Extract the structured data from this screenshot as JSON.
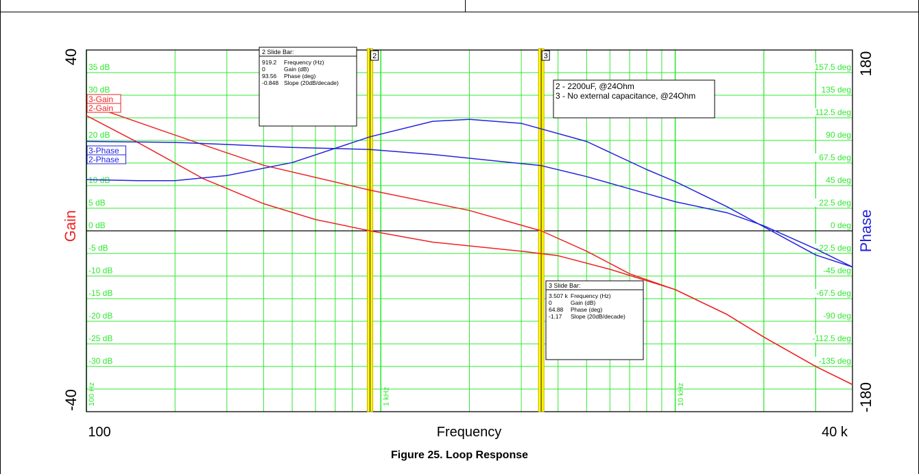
{
  "caption": "Figure 25. Loop Response",
  "colors": {
    "gain": "#ee2222",
    "phase": "#2222dd",
    "grid": "#2ee82e",
    "slidebar": "#ffff00",
    "slidebar_edge": "#c8a800"
  },
  "chart_data": {
    "type": "line",
    "xlabel": "Frequency",
    "x_scale": "log",
    "xlim": [
      100,
      40000
    ],
    "x_end_labels": [
      "100",
      "40 k"
    ],
    "x_grid_labels": [
      {
        "x": 100,
        "text": "100 Hz"
      },
      {
        "x": 1000,
        "text": "1 kHz"
      },
      {
        "x": 10000,
        "text": "10 kHz"
      }
    ],
    "y_left": {
      "label": "Gain",
      "lim": [
        -40,
        40
      ],
      "end_labels": [
        "40",
        "-40"
      ],
      "ticks": [
        {
          "v": 35,
          "t": "35 dB"
        },
        {
          "v": 30,
          "t": "30 dB"
        },
        {
          "v": 20,
          "t": "20 dB"
        },
        {
          "v": 10,
          "t": "10 dB"
        },
        {
          "v": 5,
          "t": "5 dB"
        },
        {
          "v": 0,
          "t": "0 dB"
        },
        {
          "v": -5,
          "t": "-5 dB"
        },
        {
          "v": -10,
          "t": "-10 dB"
        },
        {
          "v": -15,
          "t": "-15 dB"
        },
        {
          "v": -20,
          "t": "-20 dB"
        },
        {
          "v": -25,
          "t": "-25 dB"
        },
        {
          "v": -30,
          "t": "-30 dB"
        }
      ]
    },
    "y_right": {
      "label": "Phase",
      "lim": [
        -180,
        180
      ],
      "end_labels": [
        "180",
        "-180"
      ],
      "ticks": [
        {
          "v": 157.5,
          "t": "157.5 deg"
        },
        {
          "v": 135,
          "t": "135 deg"
        },
        {
          "v": 112.5,
          "t": "112.5 deg"
        },
        {
          "v": 90,
          "t": "90 deg"
        },
        {
          "v": 67.5,
          "t": "67.5 deg"
        },
        {
          "v": 45,
          "t": "45 deg"
        },
        {
          "v": 22.5,
          "t": "22.5 deg"
        },
        {
          "v": 0,
          "t": "0 deg"
        },
        {
          "v": -22.5,
          "t": "-22.5 deg"
        },
        {
          "v": -45,
          "t": "-45 deg"
        },
        {
          "v": -67.5,
          "t": "-67.5 deg"
        },
        {
          "v": -90,
          "t": "-90 deg"
        },
        {
          "v": -112.5,
          "t": "-112.5 deg"
        },
        {
          "v": -135,
          "t": "-135 deg"
        }
      ]
    },
    "series": [
      {
        "name": "3-Gain",
        "axis": "left",
        "kind": "gain",
        "points": [
          [
            100,
            28
          ],
          [
            150,
            24
          ],
          [
            250,
            19
          ],
          [
            400,
            14.5
          ],
          [
            919,
            9
          ],
          [
            2000,
            4.5
          ],
          [
            3507,
            0
          ],
          [
            5000,
            -4.5
          ],
          [
            7000,
            -9.5
          ],
          [
            10000,
            -13
          ],
          [
            15000,
            -18.5
          ],
          [
            20000,
            -23.5
          ],
          [
            30000,
            -30
          ],
          [
            40000,
            -34
          ]
        ]
      },
      {
        "name": "2-Gain",
        "axis": "left",
        "kind": "gain",
        "points": [
          [
            100,
            25.5
          ],
          [
            150,
            19.5
          ],
          [
            250,
            11.5
          ],
          [
            400,
            6
          ],
          [
            600,
            2.5
          ],
          [
            919,
            0
          ],
          [
            1500,
            -2.5
          ],
          [
            3000,
            -4.5
          ],
          [
            4000,
            -5.5
          ],
          [
            6000,
            -8.5
          ],
          [
            10000,
            -13
          ],
          [
            15000,
            -18.5
          ],
          [
            20000,
            -23.5
          ],
          [
            30000,
            -30
          ],
          [
            40000,
            -34
          ]
        ]
      },
      {
        "name": "3-Phase",
        "axis": "right",
        "kind": "phase",
        "points": [
          [
            100,
            89
          ],
          [
            200,
            88
          ],
          [
            300,
            86
          ],
          [
            500,
            83
          ],
          [
            919,
            81
          ],
          [
            1500,
            76
          ],
          [
            3507,
            64.9
          ],
          [
            5000,
            54
          ],
          [
            8000,
            37
          ],
          [
            10000,
            29
          ],
          [
            15000,
            18
          ],
          [
            20000,
            5
          ],
          [
            30000,
            -18
          ],
          [
            40000,
            -36
          ]
        ]
      },
      {
        "name": "2-Phase",
        "axis": "right",
        "kind": "phase",
        "points": [
          [
            100,
            51
          ],
          [
            150,
            50
          ],
          [
            200,
            50
          ],
          [
            300,
            55
          ],
          [
            500,
            68
          ],
          [
            919,
            93.6
          ],
          [
            1500,
            109
          ],
          [
            2000,
            111
          ],
          [
            3000,
            107
          ],
          [
            5000,
            89
          ],
          [
            8000,
            61
          ],
          [
            10000,
            49
          ],
          [
            15000,
            24
          ],
          [
            20000,
            4
          ],
          [
            30000,
            -24
          ],
          [
            40000,
            -36
          ]
        ]
      }
    ],
    "legend_entries": [
      "3-Gain",
      "2-Gain",
      "3-Phase",
      "2-Phase"
    ],
    "slide_bars": [
      {
        "id": "2",
        "x": 919.2,
        "title": "2  Slide Bar:",
        "rows": [
          [
            "919.2",
            "Frequency (Hz)"
          ],
          [
            "0",
            "Gain (dB)"
          ],
          [
            "93.56",
            "Phase (deg)"
          ],
          [
            "-0.848",
            "Slope (20dB/decade)"
          ]
        ]
      },
      {
        "id": "3",
        "x": 3507,
        "title": "3  Slide Bar:",
        "rows": [
          [
            "3.507 k",
            "Frequency (Hz)"
          ],
          [
            "0",
            "Gain (dB)"
          ],
          [
            "64.88",
            "Phase (deg)"
          ],
          [
            "-1.17",
            "Slope (20dB/decade)"
          ]
        ]
      }
    ],
    "annotation": [
      "2 - 2200uF, @24Ohm",
      "3 - No external capacitance, @24Ohm"
    ]
  }
}
